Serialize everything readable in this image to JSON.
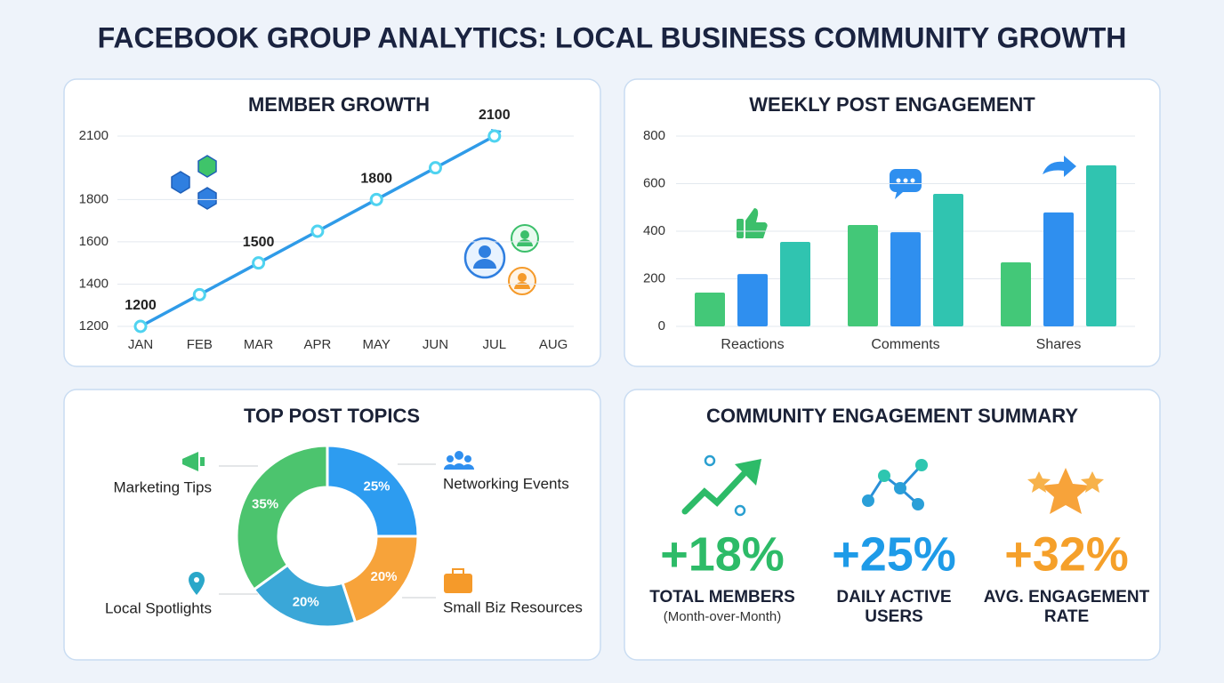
{
  "title": "FACEBOOK GROUP ANALYTICS: LOCAL BUSINESS COMMUNITY GROWTH",
  "chart_data": [
    {
      "type": "line",
      "title": "MEMBER GROWTH",
      "categories": [
        "JAN",
        "FEB",
        "MAR",
        "APR",
        "MAY",
        "JUN",
        "JUL",
        "AUG"
      ],
      "series": [
        {
          "color": "#2f9be8",
          "values": [
            1200,
            1350,
            1500,
            1650,
            1800,
            1950,
            2100,
            null
          ]
        }
      ],
      "ylim": [
        1200,
        2100
      ],
      "yticks": [
        1200,
        1400,
        1600,
        1800,
        2100
      ],
      "grid": true
    },
    {
      "type": "bar",
      "title": "WEEKLY POST ENGAGEMENT",
      "categories": [
        "Reactions",
        "Comments",
        "Shares"
      ],
      "series": [
        {
          "color": "#43c878",
          "values": [
            142,
            426,
            269
          ]
        },
        {
          "color": "#2f8fef",
          "values": [
            220,
            396,
            479
          ]
        },
        {
          "color": "#30c4b0",
          "values": [
            355,
            557,
            677
          ]
        }
      ],
      "ylim": [
        0,
        800
      ],
      "yticks": [
        0,
        200,
        400,
        600,
        800
      ],
      "grid": true
    },
    {
      "type": "pie",
      "title": "TOP POST TOPICS",
      "categories": [
        "Networking Events",
        "Small Biz Resources",
        "Local Spotlights",
        "Marketing Tips"
      ],
      "values": [
        25,
        20,
        20,
        35
      ],
      "value_labels": [
        "25%",
        "20%",
        "20%",
        "35%"
      ],
      "colors": [
        "#2d9cf0",
        "#f7a33a",
        "#3aa7d8",
        "#4cc46e"
      ]
    }
  ],
  "summary": {
    "title": "COMMUNITY ENGAGEMENT SUMMARY",
    "items": [
      {
        "value": "+18%",
        "label": "TOTAL MEMBERS",
        "sublabel": "(Month-over-Month)",
        "color": "#2dbb68"
      },
      {
        "value": "+25%",
        "label": "DAILY ACTIVE",
        "sublabel": "USERS",
        "color": "#1e9be8"
      },
      {
        "value": "+32%",
        "label": "AVG. ENGAGEMENT",
        "sublabel": "RATE",
        "color": "#f5a02a"
      }
    ]
  }
}
